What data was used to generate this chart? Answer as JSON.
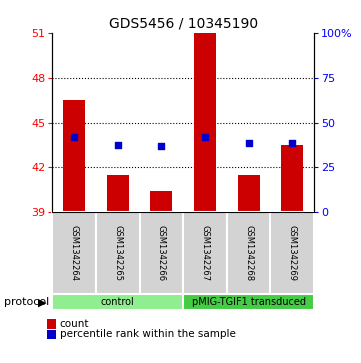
{
  "title": "GDS5456 / 10345190",
  "samples": [
    "GSM1342264",
    "GSM1342265",
    "GSM1342266",
    "GSM1342267",
    "GSM1342268",
    "GSM1342269"
  ],
  "counts": [
    46.5,
    41.5,
    40.4,
    51.0,
    41.5,
    43.5
  ],
  "percentiles": [
    44.0,
    43.5,
    43.4,
    44.0,
    43.6,
    43.6
  ],
  "ylim_left": [
    39,
    51
  ],
  "yticks_left": [
    39,
    42,
    45,
    48,
    51
  ],
  "ylim_right": [
    0,
    100
  ],
  "yticks_right": [
    0,
    25,
    50,
    75,
    100
  ],
  "ytick_right_labels": [
    "0",
    "25",
    "50",
    "75",
    "100%"
  ],
  "bar_color": "#cc0000",
  "dot_color": "#0000cc",
  "protocol_groups": [
    {
      "label": "control",
      "start": 0,
      "end": 3,
      "color": "#90ee90"
    },
    {
      "label": "pMIG-TGIF1 transduced",
      "start": 3,
      "end": 6,
      "color": "#44cc44"
    }
  ],
  "bar_width": 0.5,
  "base_value": 39,
  "bg_color": "#ffffff",
  "label_bg": "#d3d3d3"
}
